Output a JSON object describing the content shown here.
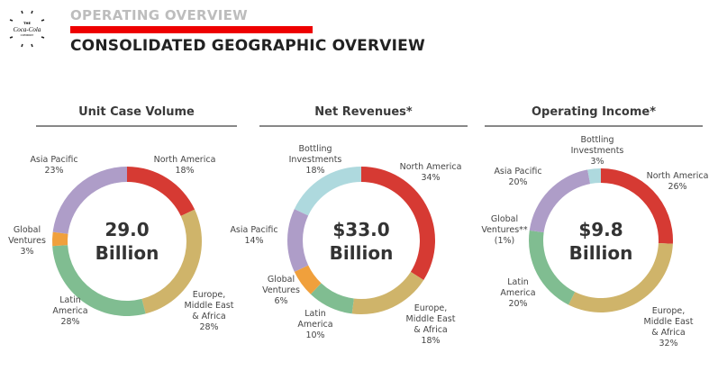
{
  "header": {
    "logo_text": [
      "THE",
      "Coca-Cola",
      "COMPANY"
    ],
    "supertitle": "OPERATING OVERVIEW",
    "title": "CONSOLIDATED GEOGRAPHIC OVERVIEW"
  },
  "colors": {
    "north_america": "#d63a33",
    "emea": "#cfb46a",
    "latin_america": "#80bd91",
    "global_ventures": "#f0a03c",
    "asia_pacific": "#ae9dc8",
    "bottling": "#aed9de"
  },
  "chart_data": [
    {
      "type": "pie",
      "title": "Unit Case Volume",
      "center": [
        "29.0",
        "Billion"
      ],
      "slices": [
        {
          "label": [
            "North America"
          ],
          "value": 18,
          "pct": "18%",
          "color": "#d63a33"
        },
        {
          "label": [
            "Europe,",
            "Middle East",
            "& Africa"
          ],
          "value": 28,
          "pct": "28%",
          "color": "#cfb46a"
        },
        {
          "label": [
            "Latin",
            "America"
          ],
          "value": 28,
          "pct": "28%",
          "color": "#80bd91"
        },
        {
          "label": [
            "Global",
            "Ventures"
          ],
          "value": 3,
          "pct": "3%",
          "color": "#f0a03c"
        },
        {
          "label": [
            "Asia Pacific"
          ],
          "value": 23,
          "pct": "23%",
          "color": "#ae9dc8"
        }
      ]
    },
    {
      "type": "pie",
      "title": "Net Revenues*",
      "center": [
        "$33.0",
        "Billion"
      ],
      "slices": [
        {
          "label": [
            "North America"
          ],
          "value": 34,
          "pct": "34%",
          "color": "#d63a33"
        },
        {
          "label": [
            "Europe,",
            "Middle East",
            "& Africa"
          ],
          "value": 18,
          "pct": "18%",
          "color": "#cfb46a"
        },
        {
          "label": [
            "Latin",
            "America"
          ],
          "value": 10,
          "pct": "10%",
          "color": "#80bd91"
        },
        {
          "label": [
            "Global",
            "Ventures"
          ],
          "value": 6,
          "pct": "6%",
          "color": "#f0a03c"
        },
        {
          "label": [
            "Asia Pacific"
          ],
          "value": 14,
          "pct": "14%",
          "color": "#ae9dc8"
        },
        {
          "label": [
            "Bottling",
            "Investments"
          ],
          "value": 18,
          "pct": "18%",
          "color": "#aed9de"
        }
      ]
    },
    {
      "type": "pie",
      "title": "Operating Income*",
      "center": [
        "$9.8",
        "Billion"
      ],
      "slices": [
        {
          "label": [
            "North America"
          ],
          "value": 26,
          "pct": "26%",
          "color": "#d63a33"
        },
        {
          "label": [
            "Europe,",
            "Middle East",
            "& Africa"
          ],
          "value": 32,
          "pct": "32%",
          "color": "#cfb46a"
        },
        {
          "label": [
            "Latin",
            "America"
          ],
          "value": 20,
          "pct": "20%",
          "color": "#80bd91"
        },
        {
          "label": [
            "Global",
            "Ventures**"
          ],
          "value": -1,
          "pct": "(1%)",
          "color": "#f0a03c"
        },
        {
          "label": [
            "Asia Pacific"
          ],
          "value": 20,
          "pct": "20%",
          "color": "#ae9dc8"
        },
        {
          "label": [
            "Bottling",
            "Investments"
          ],
          "value": 3,
          "pct": "3%",
          "color": "#aed9de"
        }
      ]
    }
  ]
}
